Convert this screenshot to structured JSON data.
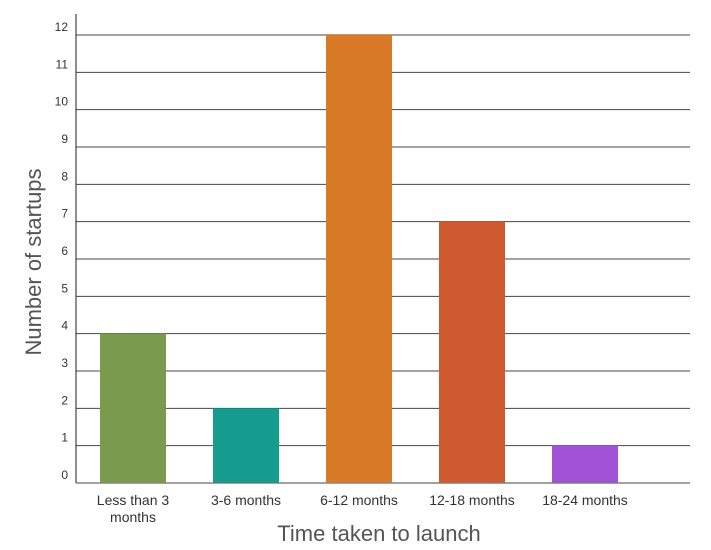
{
  "chart_data": {
    "type": "bar",
    "categories": [
      "Less than 3 months",
      "3-6 months",
      "6-12 months",
      "12-18 months",
      "18-24 months"
    ],
    "values": [
      4,
      2,
      12,
      7,
      1
    ],
    "colors": [
      "#7a9a4e",
      "#169c8e",
      "#d87a27",
      "#cf5a30",
      "#a053d6"
    ],
    "xlabel": "Time taken to launch",
    "ylabel": "Number of startups",
    "ylim": [
      0,
      12
    ],
    "yticks": [
      0,
      1,
      2,
      3,
      4,
      5,
      6,
      7,
      8,
      9,
      10,
      11,
      12
    ],
    "grid": true,
    "legend": "none"
  }
}
